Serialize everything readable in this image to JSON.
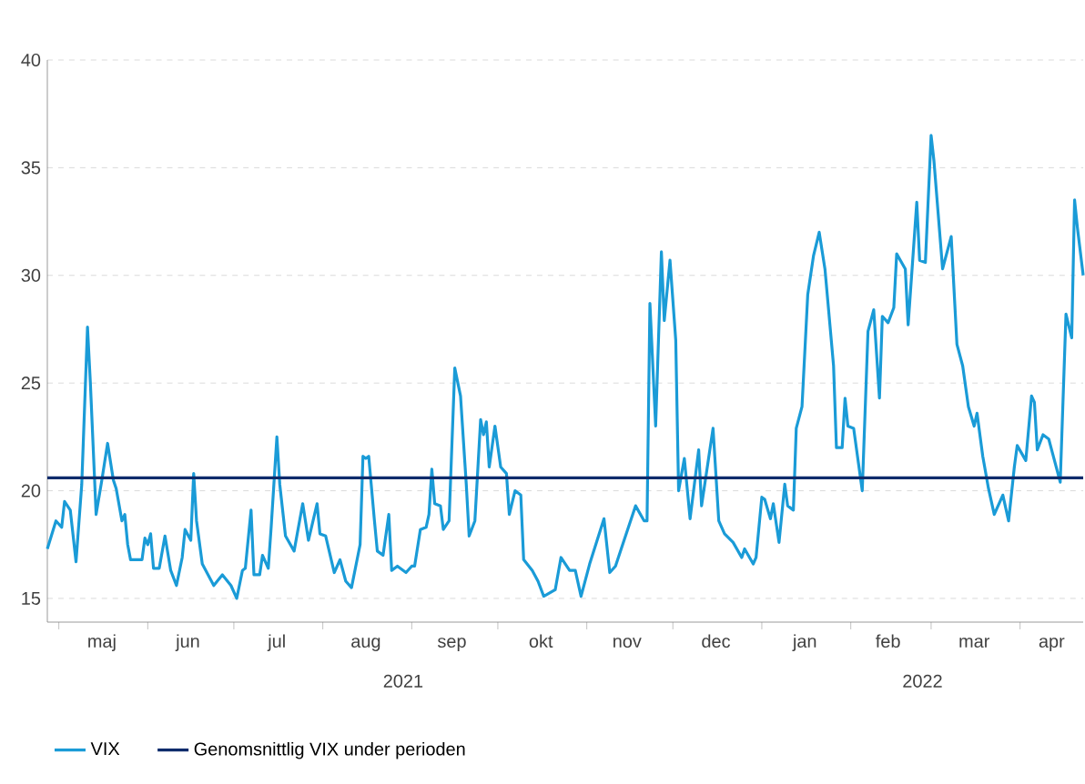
{
  "chart_data": {
    "type": "line",
    "xlim": [
      "2021-04-27",
      "2022-04-23"
    ],
    "ylim": [
      13.9,
      40
    ],
    "yticks": [
      15,
      20,
      25,
      30,
      35,
      40
    ],
    "xticks": [
      {
        "value": "2021-05-01",
        "label": null
      },
      {
        "value": "2021-05-16",
        "label": "maj"
      },
      {
        "value": "2021-06-01",
        "label": null
      },
      {
        "value": "2021-06-15",
        "label": "jun"
      },
      {
        "value": "2021-07-01",
        "label": null
      },
      {
        "value": "2021-07-16",
        "label": "jul"
      },
      {
        "value": "2021-08-01",
        "label": null
      },
      {
        "value": "2021-08-16",
        "label": "aug"
      },
      {
        "value": "2021-09-01",
        "label": null
      },
      {
        "value": "2021-09-15",
        "label": "sep"
      },
      {
        "value": "2021-10-01",
        "label": null
      },
      {
        "value": "2021-10-16",
        "label": "okt"
      },
      {
        "value": "2021-11-01",
        "label": null
      },
      {
        "value": "2021-11-15",
        "label": "nov"
      },
      {
        "value": "2021-12-01",
        "label": null
      },
      {
        "value": "2021-12-16",
        "label": "dec"
      },
      {
        "value": "2022-01-01",
        "label": null
      },
      {
        "value": "2022-01-16",
        "label": "jan"
      },
      {
        "value": "2022-02-01",
        "label": null
      },
      {
        "value": "2022-02-14",
        "label": "feb"
      },
      {
        "value": "2022-03-01",
        "label": null
      },
      {
        "value": "2022-03-16",
        "label": "mar"
      },
      {
        "value": "2022-04-01",
        "label": null
      },
      {
        "value": "2022-04-12",
        "label": "apr"
      }
    ],
    "grid": "y",
    "legend": "bottom",
    "line_style": "solid",
    "marker": "none",
    "annotations": [
      "2021",
      "2022"
    ],
    "ref_lines": [
      {
        "axis": "y",
        "value": 20.6,
        "label": "Genomsnittlig VIX under perioden",
        "color": "#0d2b6b"
      }
    ],
    "series": [
      {
        "name": "VIX",
        "color": "#1a9bd7",
        "x": [
          "2021-04-27",
          "2021-04-30",
          "2021-05-02",
          "2021-05-03",
          "2021-05-05",
          "2021-05-07",
          "2021-05-09",
          "2021-05-11",
          "2021-05-12",
          "2021-05-14",
          "2021-05-16",
          "2021-05-18",
          "2021-05-20",
          "2021-05-21",
          "2021-05-23",
          "2021-05-24",
          "2021-05-25",
          "2021-05-26",
          "2021-05-30",
          "2021-05-31",
          "2021-06-01",
          "2021-06-02",
          "2021-06-03",
          "2021-06-05",
          "2021-06-07",
          "2021-06-09",
          "2021-06-11",
          "2021-06-13",
          "2021-06-14",
          "2021-06-16",
          "2021-06-17",
          "2021-06-18",
          "2021-06-20",
          "2021-06-24",
          "2021-06-27",
          "2021-06-30",
          "2021-07-02",
          "2021-07-04",
          "2021-07-05",
          "2021-07-07",
          "2021-07-08",
          "2021-07-10",
          "2021-07-11",
          "2021-07-13",
          "2021-07-14",
          "2021-07-16",
          "2021-07-17",
          "2021-07-19",
          "2021-07-22",
          "2021-07-25",
          "2021-07-27",
          "2021-07-30",
          "2021-07-31",
          "2021-08-02",
          "2021-08-05",
          "2021-08-07",
          "2021-08-09",
          "2021-08-11",
          "2021-08-14",
          "2021-08-15",
          "2021-08-16",
          "2021-08-17",
          "2021-08-19",
          "2021-08-20",
          "2021-08-22",
          "2021-08-24",
          "2021-08-25",
          "2021-08-27",
          "2021-08-30",
          "2021-09-01",
          "2021-09-02",
          "2021-09-04",
          "2021-09-06",
          "2021-09-07",
          "2021-09-08",
          "2021-09-09",
          "2021-09-11",
          "2021-09-12",
          "2021-09-14",
          "2021-09-16",
          "2021-09-18",
          "2021-09-20",
          "2021-09-21",
          "2021-09-23",
          "2021-09-25",
          "2021-09-26",
          "2021-09-27",
          "2021-09-28",
          "2021-09-30",
          "2021-10-02",
          "2021-10-04",
          "2021-10-05",
          "2021-10-07",
          "2021-10-09",
          "2021-10-10",
          "2021-10-13",
          "2021-10-15",
          "2021-10-17",
          "2021-10-21",
          "2021-10-23",
          "2021-10-26",
          "2021-10-28",
          "2021-10-30",
          "2021-11-02",
          "2021-11-07",
          "2021-11-09",
          "2021-11-11",
          "2021-11-14",
          "2021-11-18",
          "2021-11-21",
          "2021-11-22",
          "2021-11-23",
          "2021-11-25",
          "2021-11-27",
          "2021-11-28",
          "2021-11-30",
          "2021-12-02",
          "2021-12-03",
          "2021-12-05",
          "2021-12-07",
          "2021-12-10",
          "2021-12-11",
          "2021-12-15",
          "2021-12-17",
          "2021-12-19",
          "2021-12-22",
          "2021-12-25",
          "2021-12-26",
          "2021-12-29",
          "2021-12-30",
          "2022-01-01",
          "2022-01-02",
          "2022-01-04",
          "2022-01-05",
          "2022-01-07",
          "2022-01-09",
          "2022-01-10",
          "2022-01-12",
          "2022-01-13",
          "2022-01-15",
          "2022-01-17",
          "2022-01-19",
          "2022-01-21",
          "2022-01-23",
          "2022-01-26",
          "2022-01-27",
          "2022-01-29",
          "2022-01-30",
          "2022-01-31",
          "2022-02-02",
          "2022-02-05",
          "2022-02-07",
          "2022-02-09",
          "2022-02-11",
          "2022-02-12",
          "2022-02-14",
          "2022-02-16",
          "2022-02-17",
          "2022-02-20",
          "2022-02-21",
          "2022-02-24",
          "2022-02-25",
          "2022-02-27",
          "2022-03-01",
          "2022-03-02",
          "2022-03-05",
          "2022-03-08",
          "2022-03-10",
          "2022-03-12",
          "2022-03-14",
          "2022-03-16",
          "2022-03-17",
          "2022-03-19",
          "2022-03-21",
          "2022-03-23",
          "2022-03-26",
          "2022-03-28",
          "2022-03-30",
          "2022-03-31",
          "2022-04-03",
          "2022-04-05",
          "2022-04-06",
          "2022-04-07",
          "2022-04-09",
          "2022-04-11",
          "2022-04-12",
          "2022-04-15",
          "2022-04-17",
          "2022-04-19",
          "2022-04-20",
          "2022-04-21",
          "2022-04-23"
        ],
        "values": [
          17.3,
          18.6,
          18.3,
          19.5,
          19.1,
          16.7,
          20.3,
          27.6,
          25,
          18.9,
          20.5,
          22.2,
          20.5,
          20.1,
          18.6,
          18.9,
          17.5,
          16.8,
          16.8,
          17.8,
          17.5,
          18.0,
          16.4,
          16.4,
          17.9,
          16.3,
          15.6,
          16.9,
          18.2,
          17.7,
          20.8,
          18.6,
          16.6,
          15.6,
          16.1,
          15.6,
          15.0,
          16.3,
          16.4,
          19.1,
          16.1,
          16.1,
          17.0,
          16.4,
          18.3,
          22.5,
          20.3,
          17.9,
          17.2,
          19.4,
          17.7,
          19.4,
          18.0,
          17.9,
          16.2,
          16.8,
          15.8,
          15.5,
          17.5,
          21.6,
          21.5,
          21.6,
          18.6,
          17.2,
          17.0,
          18.9,
          16.3,
          16.5,
          16.2,
          16.5,
          16.5,
          18.2,
          18.3,
          18.9,
          21.0,
          19.4,
          19.3,
          18.2,
          18.6,
          25.7,
          24.4,
          20.3,
          17.9,
          18.6,
          23.3,
          22.6,
          23.2,
          21.1,
          23.0,
          21.1,
          20.8,
          18.9,
          20.0,
          19.8,
          16.8,
          16.3,
          15.8,
          15.1,
          15.4,
          16.9,
          16.3,
          16.3,
          15.1,
          16.6,
          18.7,
          16.2,
          16.5,
          17.7,
          19.3,
          18.6,
          18.6,
          28.7,
          23.0,
          31.1,
          27.9,
          30.7,
          27.0,
          20.0,
          21.5,
          18.7,
          21.9,
          19.3,
          22.9,
          18.6,
          18.0,
          17.6,
          16.9,
          17.3,
          16.6,
          16.9,
          19.7,
          19.6,
          18.7,
          19.4,
          17.6,
          20.3,
          19.3,
          19.1,
          22.9,
          23.9,
          29.1,
          30.9,
          32.0,
          30.3,
          25.8,
          22.0,
          22.0,
          24.3,
          23.0,
          22.9,
          20.0,
          27.4,
          28.4,
          24.3,
          28.1,
          27.8,
          28.5,
          31.0,
          30.3,
          27.7,
          33.4,
          30.7,
          30.6,
          36.5,
          35.3,
          30.3,
          31.8,
          26.8,
          25.8,
          23.9,
          23.0,
          23.6,
          21.6,
          20.1,
          18.9,
          19.8,
          18.6,
          21.1,
          22.1,
          21.4,
          24.4,
          24.1,
          21.9,
          22.6,
          22.4,
          21.9,
          20.4,
          28.2,
          27.1,
          33.5,
          32.2,
          30.0
        ]
      }
    ]
  }
}
